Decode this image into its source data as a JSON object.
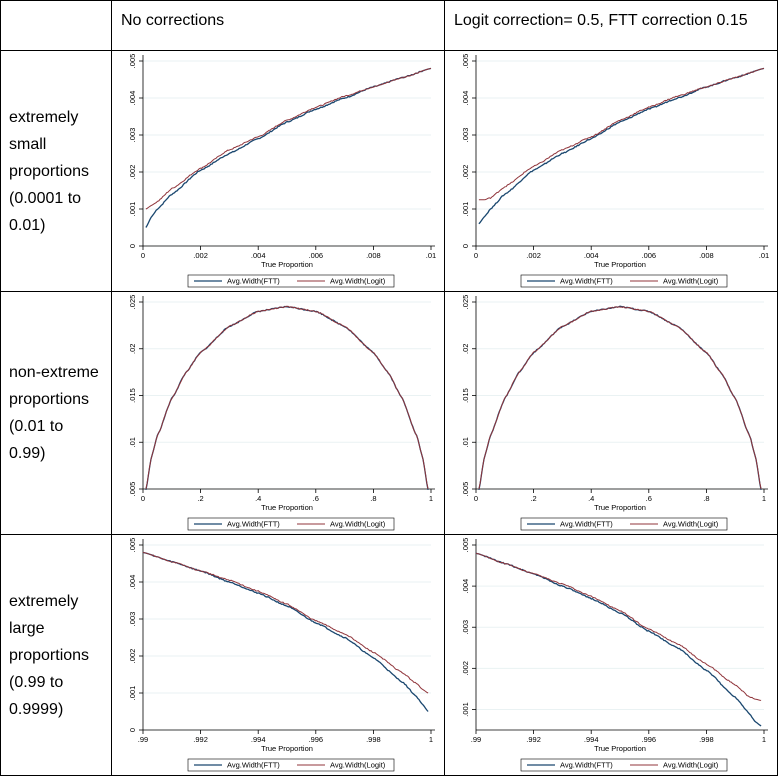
{
  "header": {
    "col1": "No corrections",
    "col2": "Logit correction= 0.5, FTT correction 0.15"
  },
  "rows": [
    {
      "label": [
        "extremely",
        "small",
        "proportions",
        "(0.0001 to",
        "0.01)"
      ]
    },
    {
      "label": [
        "non-extreme",
        "proportions",
        "(0.01 to",
        "0.99)"
      ]
    },
    {
      "label": [
        "extremely",
        "large",
        "proportions",
        "(0.99 to",
        "0.9999)"
      ]
    }
  ],
  "colors": {
    "ftt": "#1a476f",
    "logit": "#90353b",
    "grid": "#eaf2f3",
    "axis": "#000000"
  },
  "chart_data": [
    {
      "id": "small-none",
      "type": "line",
      "xlabel": "True Proportion",
      "xlim": [
        0,
        0.01
      ],
      "ylim": [
        0,
        0.005
      ],
      "xticks": [
        0,
        0.002,
        0.004,
        0.006,
        0.008,
        0.01
      ],
      "xtick_labels": [
        "0",
        ".002",
        ".004",
        ".006",
        ".008",
        ".01"
      ],
      "yticks": [
        0,
        0.001,
        0.002,
        0.003,
        0.004,
        0.005
      ],
      "ytick_labels": [
        "0",
        ".001",
        ".002",
        ".003",
        ".004",
        ".005"
      ],
      "x": [
        0.0001,
        0.0003,
        0.0005,
        0.001,
        0.002,
        0.003,
        0.004,
        0.005,
        0.006,
        0.007,
        0.008,
        0.009,
        0.01
      ],
      "series": [
        {
          "name": "Avg.Width(FTT)",
          "values": [
            0.0005,
            0.0008,
            0.001,
            0.0014,
            0.00205,
            0.0025,
            0.0029,
            0.00335,
            0.0037,
            0.004,
            0.0043,
            0.00455,
            0.0048
          ]
        },
        {
          "name": "Avg.Width(Logit)",
          "values": [
            0.001,
            0.0011,
            0.0012,
            0.00155,
            0.0021,
            0.0026,
            0.00295,
            0.0034,
            0.00375,
            0.00405,
            0.0043,
            0.00455,
            0.0048
          ]
        }
      ],
      "legend": [
        "Avg.Width(FTT)",
        "Avg.Width(Logit)"
      ]
    },
    {
      "id": "small-corr",
      "type": "line",
      "xlabel": "True Proportion",
      "xlim": [
        0,
        0.01
      ],
      "ylim": [
        0,
        0.005
      ],
      "xticks": [
        0,
        0.002,
        0.004,
        0.006,
        0.008,
        0.01
      ],
      "xtick_labels": [
        "0",
        ".002",
        ".004",
        ".006",
        ".008",
        ".01"
      ],
      "yticks": [
        0,
        0.001,
        0.002,
        0.003,
        0.004,
        0.005
      ],
      "ytick_labels": [
        "0",
        ".001",
        ".002",
        ".003",
        ".004",
        ".005"
      ],
      "x": [
        0.0001,
        0.0003,
        0.0005,
        0.001,
        0.002,
        0.003,
        0.004,
        0.005,
        0.006,
        0.007,
        0.008,
        0.009,
        0.01
      ],
      "series": [
        {
          "name": "Avg.Width(FTT)",
          "values": [
            0.0006,
            0.0008,
            0.001,
            0.0014,
            0.00205,
            0.0025,
            0.0029,
            0.00335,
            0.0037,
            0.004,
            0.0043,
            0.00455,
            0.0048
          ]
        },
        {
          "name": "Avg.Width(Logit)",
          "values": [
            0.00125,
            0.00125,
            0.0013,
            0.0016,
            0.00215,
            0.0026,
            0.00295,
            0.0034,
            0.00375,
            0.00405,
            0.0043,
            0.00455,
            0.0048
          ]
        }
      ],
      "legend": [
        "Avg.Width(FTT)",
        "Avg.Width(Logit)"
      ]
    },
    {
      "id": "mid-none",
      "type": "line",
      "xlabel": "True Proportion",
      "xlim": [
        0,
        1
      ],
      "ylim": [
        0.005,
        0.025
      ],
      "xticks": [
        0,
        0.2,
        0.4,
        0.6,
        0.8,
        1
      ],
      "xtick_labels": [
        "0",
        ".2",
        ".4",
        ".6",
        ".8",
        "1"
      ],
      "yticks": [
        0.005,
        0.01,
        0.015,
        0.02,
        0.025
      ],
      "ytick_labels": [
        ".005",
        ".01",
        ".015",
        ".02",
        ".025"
      ],
      "x": [
        0.01,
        0.03,
        0.05,
        0.1,
        0.15,
        0.2,
        0.3,
        0.4,
        0.5,
        0.6,
        0.7,
        0.8,
        0.85,
        0.9,
        0.95,
        0.97,
        0.99
      ],
      "series": [
        {
          "name": "Avg.Width(FTT)",
          "values": [
            0.0049,
            0.0085,
            0.0107,
            0.0147,
            0.0175,
            0.0196,
            0.0224,
            0.024,
            0.0245,
            0.024,
            0.0224,
            0.0196,
            0.0175,
            0.0147,
            0.0107,
            0.0085,
            0.0049
          ]
        },
        {
          "name": "Avg.Width(Logit)",
          "values": [
            0.005,
            0.0085,
            0.0107,
            0.0147,
            0.0175,
            0.0196,
            0.0224,
            0.024,
            0.0245,
            0.024,
            0.0224,
            0.0196,
            0.0175,
            0.0147,
            0.0107,
            0.0085,
            0.005
          ]
        }
      ],
      "legend": [
        "Avg.Width(FTT)",
        "Avg.Width(Logit)"
      ]
    },
    {
      "id": "mid-corr",
      "type": "line",
      "xlabel": "True Proportion",
      "xlim": [
        0,
        1
      ],
      "ylim": [
        0.005,
        0.025
      ],
      "xticks": [
        0,
        0.2,
        0.4,
        0.6,
        0.8,
        1
      ],
      "xtick_labels": [
        "0",
        ".2",
        ".4",
        ".6",
        ".8",
        "1"
      ],
      "yticks": [
        0.005,
        0.01,
        0.015,
        0.02,
        0.025
      ],
      "ytick_labels": [
        ".005",
        ".01",
        ".015",
        ".02",
        ".025"
      ],
      "x": [
        0.01,
        0.03,
        0.05,
        0.1,
        0.15,
        0.2,
        0.3,
        0.4,
        0.5,
        0.6,
        0.7,
        0.8,
        0.85,
        0.9,
        0.95,
        0.97,
        0.99
      ],
      "series": [
        {
          "name": "Avg.Width(FTT)",
          "values": [
            0.0049,
            0.0085,
            0.0107,
            0.0147,
            0.0175,
            0.0196,
            0.0224,
            0.024,
            0.0245,
            0.024,
            0.0224,
            0.0196,
            0.0175,
            0.0147,
            0.0107,
            0.0085,
            0.0049
          ]
        },
        {
          "name": "Avg.Width(Logit)",
          "values": [
            0.005,
            0.0085,
            0.0107,
            0.0147,
            0.0175,
            0.0196,
            0.0224,
            0.024,
            0.0245,
            0.024,
            0.0224,
            0.0196,
            0.0175,
            0.0147,
            0.0107,
            0.0085,
            0.005
          ]
        }
      ],
      "legend": [
        "Avg.Width(FTT)",
        "Avg.Width(Logit)"
      ]
    },
    {
      "id": "large-none",
      "type": "line",
      "xlabel": "True Proportion",
      "xlim": [
        0.99,
        1
      ],
      "ylim": [
        0,
        0.005
      ],
      "xticks": [
        0.99,
        0.992,
        0.994,
        0.996,
        0.998,
        1
      ],
      "xtick_labels": [
        ".99",
        ".992",
        ".994",
        ".996",
        ".998",
        "1"
      ],
      "yticks": [
        0,
        0.001,
        0.002,
        0.003,
        0.004,
        0.005
      ],
      "ytick_labels": [
        "0",
        ".001",
        ".002",
        ".003",
        ".004",
        ".005"
      ],
      "x": [
        0.99,
        0.991,
        0.992,
        0.993,
        0.994,
        0.995,
        0.996,
        0.997,
        0.998,
        0.999,
        0.9995,
        0.9997,
        0.9999
      ],
      "series": [
        {
          "name": "Avg.Width(FTT)",
          "values": [
            0.0048,
            0.00455,
            0.0043,
            0.004,
            0.0037,
            0.00335,
            0.0029,
            0.0025,
            0.00195,
            0.0013,
            0.0009,
            0.0007,
            0.0005
          ]
        },
        {
          "name": "Avg.Width(Logit)",
          "values": [
            0.0048,
            0.00455,
            0.0043,
            0.00405,
            0.00375,
            0.0034,
            0.00295,
            0.0026,
            0.0021,
            0.00155,
            0.00125,
            0.0011,
            0.001
          ]
        }
      ],
      "legend": [
        "Avg.Width(FTT)",
        "Avg.Width(Logit)"
      ]
    },
    {
      "id": "large-corr",
      "type": "line",
      "xlabel": "True Proportion",
      "xlim": [
        0.99,
        1
      ],
      "ylim": [
        0.0005,
        0.005
      ],
      "xticks": [
        0.99,
        0.992,
        0.994,
        0.996,
        0.998,
        1
      ],
      "xtick_labels": [
        ".99",
        ".992",
        ".994",
        ".996",
        ".998",
        "1"
      ],
      "yticks": [
        0.001,
        0.002,
        0.003,
        0.004,
        0.005
      ],
      "ytick_labels": [
        ".001",
        ".002",
        ".003",
        ".004",
        ".005"
      ],
      "x": [
        0.99,
        0.991,
        0.992,
        0.993,
        0.994,
        0.995,
        0.996,
        0.997,
        0.998,
        0.999,
        0.9995,
        0.9997,
        0.9999
      ],
      "series": [
        {
          "name": "Avg.Width(FTT)",
          "values": [
            0.0048,
            0.00455,
            0.0043,
            0.004,
            0.0037,
            0.00335,
            0.0029,
            0.0025,
            0.00195,
            0.0013,
            0.0009,
            0.0007,
            0.0006
          ]
        },
        {
          "name": "Avg.Width(Logit)",
          "values": [
            0.0048,
            0.00455,
            0.0043,
            0.00405,
            0.00375,
            0.0034,
            0.00295,
            0.0026,
            0.0021,
            0.0016,
            0.0013,
            0.00125,
            0.00122
          ]
        }
      ],
      "legend": [
        "Avg.Width(FTT)",
        "Avg.Width(Logit)"
      ]
    }
  ]
}
